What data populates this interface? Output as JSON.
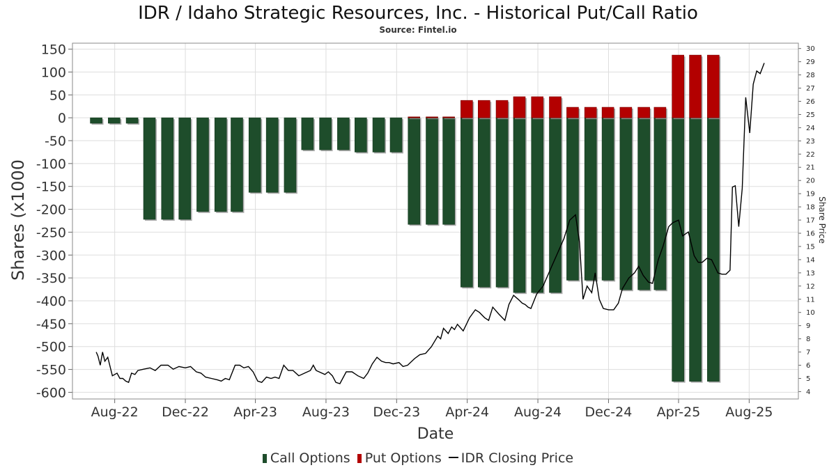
{
  "title": "IDR / Idaho Strategic Resources, Inc. - Historical Put/Call Ratio",
  "subtitle": "Source: Fintel.io",
  "legend": {
    "call": "Call Options",
    "put": "Put Options",
    "price": "IDR Closing Price"
  },
  "colors": {
    "call": "#1e4d2b",
    "put": "#b30000",
    "price_line": "#000000",
    "grid": "#dddddd"
  },
  "chart_data": {
    "type": "bar",
    "xlabel": "Date",
    "ylabel": "Shares (x1000",
    "y2label": "Share Price",
    "ylim": [
      -610,
      160
    ],
    "yticks": [
      150,
      100,
      50,
      0,
      -50,
      -100,
      -150,
      -200,
      -250,
      -300,
      -350,
      -400,
      -450,
      -500,
      -550,
      -600
    ],
    "y2lim": [
      3.6,
      30.3
    ],
    "y2ticks": [
      4,
      5,
      6,
      7,
      8,
      9,
      10,
      11,
      12,
      13,
      14,
      15,
      16,
      17,
      18,
      19,
      20,
      21,
      22,
      23,
      24,
      25,
      26,
      27,
      28,
      29,
      30
    ],
    "xlim": [
      "2022-05-20",
      "2025-10-25"
    ],
    "xticks": [
      {
        "date": "2022-08-01",
        "label": "Aug-22"
      },
      {
        "date": "2022-12-01",
        "label": "Dec-22"
      },
      {
        "date": "2023-04-01",
        "label": "Apr-23"
      },
      {
        "date": "2023-08-01",
        "label": "Aug-23"
      },
      {
        "date": "2023-12-01",
        "label": "Dec-23"
      },
      {
        "date": "2024-04-01",
        "label": "Apr-24"
      },
      {
        "date": "2024-08-01",
        "label": "Aug-24"
      },
      {
        "date": "2024-12-01",
        "label": "Dec-24"
      },
      {
        "date": "2025-04-01",
        "label": "Apr-25"
      },
      {
        "date": "2025-08-01",
        "label": "Aug-25"
      }
    ],
    "bars": [
      {
        "date": "2022-06-30",
        "call": -12,
        "put": 0
      },
      {
        "date": "2022-07-31",
        "call": -12,
        "put": 0
      },
      {
        "date": "2022-08-31",
        "call": -12,
        "put": 0
      },
      {
        "date": "2022-09-30",
        "call": -222,
        "put": 0
      },
      {
        "date": "2022-10-31",
        "call": -222,
        "put": 0
      },
      {
        "date": "2022-11-30",
        "call": -222,
        "put": 0
      },
      {
        "date": "2022-12-31",
        "call": -205,
        "put": 0
      },
      {
        "date": "2023-01-31",
        "call": -205,
        "put": 0
      },
      {
        "date": "2023-02-28",
        "call": -205,
        "put": 0
      },
      {
        "date": "2023-03-31",
        "call": -163,
        "put": 0
      },
      {
        "date": "2023-04-30",
        "call": -163,
        "put": 0
      },
      {
        "date": "2023-05-31",
        "call": -163,
        "put": 0
      },
      {
        "date": "2023-06-30",
        "call": -70,
        "put": 0
      },
      {
        "date": "2023-07-31",
        "call": -70,
        "put": 0
      },
      {
        "date": "2023-08-31",
        "call": -70,
        "put": 0
      },
      {
        "date": "2023-09-30",
        "call": -75,
        "put": 0
      },
      {
        "date": "2023-10-31",
        "call": -75,
        "put": 0
      },
      {
        "date": "2023-11-30",
        "call": -75,
        "put": 0
      },
      {
        "date": "2023-12-31",
        "call": -233,
        "put": 2
      },
      {
        "date": "2024-01-31",
        "call": -233,
        "put": 2
      },
      {
        "date": "2024-02-29",
        "call": -233,
        "put": 2
      },
      {
        "date": "2024-03-31",
        "call": -370,
        "put": 38
      },
      {
        "date": "2024-04-30",
        "call": -370,
        "put": 38
      },
      {
        "date": "2024-05-31",
        "call": -370,
        "put": 38
      },
      {
        "date": "2024-06-30",
        "call": -382,
        "put": 46
      },
      {
        "date": "2024-07-31",
        "call": -382,
        "put": 46
      },
      {
        "date": "2024-08-31",
        "call": -382,
        "put": 46
      },
      {
        "date": "2024-09-30",
        "call": -355,
        "put": 23
      },
      {
        "date": "2024-10-31",
        "call": -355,
        "put": 23
      },
      {
        "date": "2024-11-30",
        "call": -355,
        "put": 23
      },
      {
        "date": "2024-12-31",
        "call": -376,
        "put": 23
      },
      {
        "date": "2025-01-31",
        "call": -376,
        "put": 23
      },
      {
        "date": "2025-02-28",
        "call": -376,
        "put": 23
      },
      {
        "date": "2025-03-31",
        "call": -576,
        "put": 137
      },
      {
        "date": "2025-04-30",
        "call": -576,
        "put": 137
      },
      {
        "date": "2025-05-31",
        "call": -576,
        "put": 137
      }
    ],
    "price": [
      [
        "2022-06-30",
        7.0
      ],
      [
        "2022-07-03",
        6.7
      ],
      [
        "2022-07-07",
        6.0
      ],
      [
        "2022-07-11",
        7.0
      ],
      [
        "2022-07-15",
        6.3
      ],
      [
        "2022-07-20",
        6.6
      ],
      [
        "2022-07-28",
        5.2
      ],
      [
        "2022-08-05",
        5.4
      ],
      [
        "2022-08-10",
        5.0
      ],
      [
        "2022-08-15",
        5.0
      ],
      [
        "2022-08-20",
        4.8
      ],
      [
        "2022-08-25",
        4.7
      ],
      [
        "2022-08-30",
        5.4
      ],
      [
        "2022-09-05",
        5.3
      ],
      [
        "2022-09-10",
        5.6
      ],
      [
        "2022-09-20",
        5.7
      ],
      [
        "2022-10-01",
        5.8
      ],
      [
        "2022-10-10",
        5.6
      ],
      [
        "2022-10-20",
        6.0
      ],
      [
        "2022-11-01",
        6.0
      ],
      [
        "2022-11-10",
        5.7
      ],
      [
        "2022-11-20",
        5.9
      ],
      [
        "2022-12-01",
        5.8
      ],
      [
        "2022-12-10",
        5.9
      ],
      [
        "2022-12-20",
        5.5
      ],
      [
        "2022-12-28",
        5.4
      ],
      [
        "2023-01-05",
        5.1
      ],
      [
        "2023-01-15",
        5.0
      ],
      [
        "2023-01-25",
        4.9
      ],
      [
        "2023-02-01",
        4.8
      ],
      [
        "2023-02-08",
        5.0
      ],
      [
        "2023-02-15",
        4.9
      ],
      [
        "2023-02-25",
        6.0
      ],
      [
        "2023-03-05",
        6.0
      ],
      [
        "2023-03-12",
        5.8
      ],
      [
        "2023-03-20",
        5.9
      ],
      [
        "2023-03-28",
        5.5
      ],
      [
        "2023-04-05",
        4.8
      ],
      [
        "2023-04-12",
        4.7
      ],
      [
        "2023-04-20",
        5.1
      ],
      [
        "2023-04-28",
        5.0
      ],
      [
        "2023-05-05",
        5.1
      ],
      [
        "2023-05-12",
        5.0
      ],
      [
        "2023-05-20",
        6.0
      ],
      [
        "2023-05-28",
        5.6
      ],
      [
        "2023-06-05",
        5.6
      ],
      [
        "2023-06-15",
        5.2
      ],
      [
        "2023-06-25",
        5.4
      ],
      [
        "2023-07-05",
        5.6
      ],
      [
        "2023-07-10",
        6.0
      ],
      [
        "2023-07-15",
        5.6
      ],
      [
        "2023-07-20",
        5.5
      ],
      [
        "2023-07-30",
        5.3
      ],
      [
        "2023-08-05",
        5.5
      ],
      [
        "2023-08-12",
        5.2
      ],
      [
        "2023-08-18",
        4.7
      ],
      [
        "2023-08-25",
        4.6
      ],
      [
        "2023-09-05",
        5.5
      ],
      [
        "2023-09-15",
        5.5
      ],
      [
        "2023-09-25",
        5.2
      ],
      [
        "2023-10-05",
        5.0
      ],
      [
        "2023-10-12",
        5.4
      ],
      [
        "2023-10-20",
        6.1
      ],
      [
        "2023-10-28",
        6.6
      ],
      [
        "2023-11-05",
        6.3
      ],
      [
        "2023-11-12",
        6.2
      ],
      [
        "2023-11-18",
        6.2
      ],
      [
        "2023-11-25",
        6.1
      ],
      [
        "2023-12-05",
        6.2
      ],
      [
        "2023-12-12",
        5.9
      ],
      [
        "2023-12-20",
        6.0
      ],
      [
        "2024-01-01",
        6.5
      ],
      [
        "2024-01-10",
        6.8
      ],
      [
        "2024-01-20",
        6.9
      ],
      [
        "2024-01-30",
        7.4
      ],
      [
        "2024-02-10",
        8.2
      ],
      [
        "2024-02-15",
        8.0
      ],
      [
        "2024-02-20",
        8.8
      ],
      [
        "2024-02-28",
        8.4
      ],
      [
        "2024-03-05",
        8.9
      ],
      [
        "2024-03-10",
        8.7
      ],
      [
        "2024-03-15",
        9.1
      ],
      [
        "2024-03-25",
        8.6
      ],
      [
        "2024-04-05",
        9.6
      ],
      [
        "2024-04-15",
        10.2
      ],
      [
        "2024-04-22",
        10.0
      ],
      [
        "2024-05-01",
        9.6
      ],
      [
        "2024-05-08",
        9.4
      ],
      [
        "2024-05-15",
        10.4
      ],
      [
        "2024-05-25",
        9.9
      ],
      [
        "2024-06-05",
        9.4
      ],
      [
        "2024-06-12",
        10.6
      ],
      [
        "2024-06-20",
        11.3
      ],
      [
        "2024-06-28",
        11.0
      ],
      [
        "2024-07-05",
        10.7
      ],
      [
        "2024-07-10",
        10.6
      ],
      [
        "2024-07-15",
        10.4
      ],
      [
        "2024-07-20",
        10.3
      ],
      [
        "2024-07-30",
        11.4
      ],
      [
        "2024-08-10",
        12.0
      ],
      [
        "2024-08-25",
        13.5
      ],
      [
        "2024-09-05",
        14.6
      ],
      [
        "2024-09-15",
        15.6
      ],
      [
        "2024-09-25",
        17.0
      ],
      [
        "2024-10-05",
        17.4
      ],
      [
        "2024-10-12",
        15.3
      ],
      [
        "2024-10-18",
        11.0
      ],
      [
        "2024-10-25",
        12.0
      ],
      [
        "2024-11-02",
        11.5
      ],
      [
        "2024-11-08",
        13.0
      ],
      [
        "2024-11-15",
        11.0
      ],
      [
        "2024-11-22",
        10.3
      ],
      [
        "2024-12-01",
        10.2
      ],
      [
        "2024-12-10",
        10.2
      ],
      [
        "2024-12-18",
        10.7
      ],
      [
        "2024-12-25",
        11.8
      ],
      [
        "2025-01-05",
        12.6
      ],
      [
        "2025-01-15",
        13.0
      ],
      [
        "2025-01-22",
        13.5
      ],
      [
        "2025-01-30",
        12.8
      ],
      [
        "2025-02-08",
        12.3
      ],
      [
        "2025-02-15",
        12.2
      ],
      [
        "2025-02-25",
        14.0
      ],
      [
        "2025-03-05",
        15.0
      ],
      [
        "2025-03-15",
        16.5
      ],
      [
        "2025-03-22",
        16.8
      ],
      [
        "2025-04-01",
        17.0
      ],
      [
        "2025-04-08",
        15.8
      ],
      [
        "2025-04-18",
        16.1
      ],
      [
        "2025-04-28",
        14.3
      ],
      [
        "2025-05-05",
        13.8
      ],
      [
        "2025-05-12",
        13.8
      ],
      [
        "2025-05-20",
        14.1
      ],
      [
        "2025-05-28",
        14.0
      ],
      [
        "2025-06-08",
        13.0
      ],
      [
        "2025-06-15",
        12.9
      ],
      [
        "2025-06-22",
        12.9
      ],
      [
        "2025-06-29",
        13.2
      ],
      [
        "2025-07-03",
        19.5
      ],
      [
        "2025-07-08",
        19.6
      ],
      [
        "2025-07-14",
        16.5
      ],
      [
        "2025-07-20",
        19.4
      ],
      [
        "2025-07-26",
        26.3
      ],
      [
        "2025-08-02",
        23.6
      ],
      [
        "2025-08-08",
        27.3
      ],
      [
        "2025-08-14",
        28.3
      ],
      [
        "2025-08-20",
        28.1
      ],
      [
        "2025-08-27",
        28.9
      ]
    ]
  }
}
